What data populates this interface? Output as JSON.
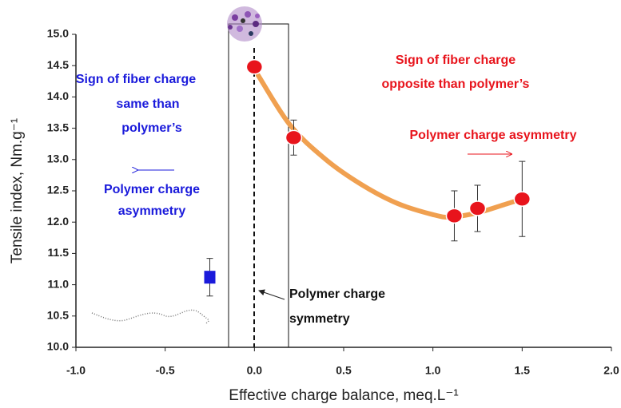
{
  "chart_data": {
    "type": "scatter",
    "xlabel": "Effective charge balance, meq.L⁻¹",
    "ylabel": "Tensile index, Nm.g⁻¹",
    "xlim": [
      -1.0,
      2.0
    ],
    "ylim": [
      10.0,
      15.0
    ],
    "xticks": [
      {
        "value": -1.0,
        "label": "-1.0"
      },
      {
        "value": -0.5,
        "label": "-0.5"
      },
      {
        "value": 0.0,
        "label": "0.0"
      },
      {
        "value": 0.5,
        "label": "0.5"
      },
      {
        "value": 1.0,
        "label": "1.0"
      },
      {
        "value": 1.5,
        "label": "1.5"
      },
      {
        "value": 2.0,
        "label": "2.0"
      }
    ],
    "yticks": [
      {
        "value": 10.0,
        "label": "10.0"
      },
      {
        "value": 10.5,
        "label": "10.5"
      },
      {
        "value": 11.0,
        "label": "11.0"
      },
      {
        "value": 11.5,
        "label": "11.5"
      },
      {
        "value": 12.0,
        "label": "12.0"
      },
      {
        "value": 12.5,
        "label": "12.5"
      },
      {
        "value": 13.0,
        "label": "13.0"
      },
      {
        "value": 13.5,
        "label": "13.5"
      },
      {
        "value": 14.0,
        "label": "14.0"
      },
      {
        "value": 14.5,
        "label": "14.5"
      },
      {
        "value": 15.0,
        "label": "15.0"
      }
    ],
    "series": [
      {
        "marker": "circle",
        "color": "#e8141c",
        "x": [
          0.0,
          0.22,
          1.12,
          1.25,
          1.5
        ],
        "values": [
          14.48,
          13.35,
          12.1,
          12.22,
          12.37
        ],
        "yerr": [
          null,
          0.28,
          0.4,
          0.37,
          0.6
        ]
      },
      {
        "marker": "square",
        "color": "#1a1adb",
        "x": [
          -0.25
        ],
        "values": [
          11.12
        ],
        "yerr": [
          0.3
        ]
      },
      {
        "marker": "line",
        "color": "#f0a050",
        "x": [
          0.02,
          0.2,
          0.4,
          0.6,
          0.8,
          1.0,
          1.1,
          1.25,
          1.4,
          1.5
        ],
        "values": [
          14.35,
          13.55,
          13.0,
          12.6,
          12.3,
          12.12,
          12.08,
          12.15,
          12.28,
          12.37
        ]
      }
    ],
    "annotations": {
      "same_sign": [
        "Sign of fiber charge",
        "same than",
        "polymer’s"
      ],
      "left_asym": [
        "Polymer charge",
        "asymmetry"
      ],
      "opposite_sign": [
        "Sign of fiber charge",
        "opposite than polymer’s"
      ],
      "right_asym": "Polymer charge asymmetry",
      "symmetry": [
        "Polymer charge",
        "symmetry"
      ]
    }
  }
}
